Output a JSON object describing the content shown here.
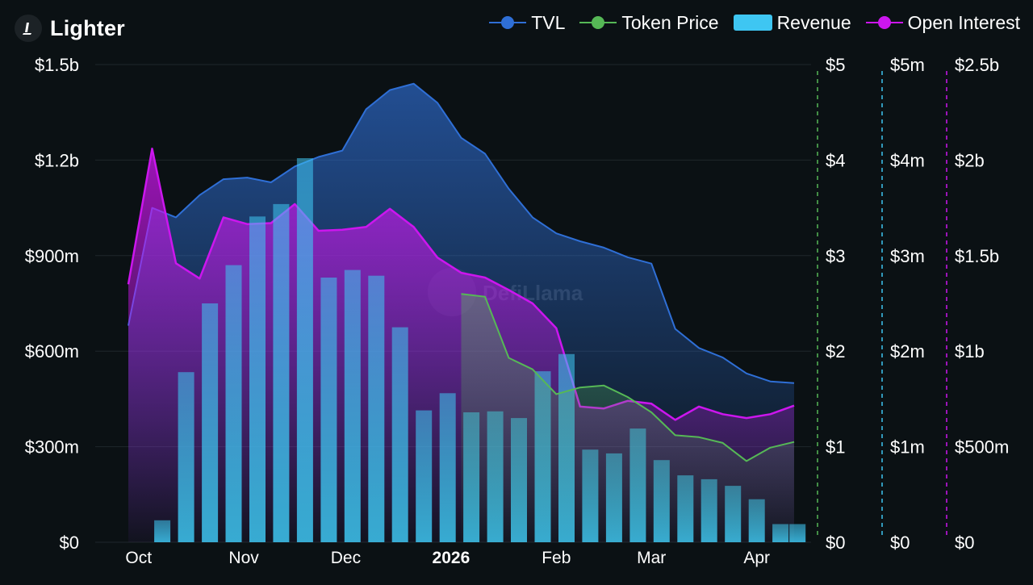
{
  "brand": {
    "name": "Lighter"
  },
  "legend": [
    {
      "label": "TVL",
      "color": "#2f6fd6",
      "marker": "line-dot"
    },
    {
      "label": "Token Price",
      "color": "#56b856",
      "marker": "line-dot"
    },
    {
      "label": "Revenue",
      "color": "#3ec6f2",
      "marker": "rect"
    },
    {
      "label": "Open Interest",
      "color": "#cc16ee",
      "marker": "line-dot"
    }
  ],
  "watermark": "DefiLlama",
  "chart_data": {
    "type": "bar",
    "x_tick_labels": [
      "Oct",
      "Nov",
      "Dec",
      "2026",
      "Feb",
      "Mar",
      "Apr"
    ],
    "x_tick_bold": "2026",
    "axes": {
      "tvl": {
        "min": 0,
        "max": 1500000000,
        "ticks": [
          0,
          300000000,
          600000000,
          900000000,
          1200000000,
          1500000000
        ],
        "tick_labels": [
          "$0",
          "$300m",
          "$600m",
          "$900m",
          "$1.2b",
          "$1.5b"
        ],
        "color": "#ffffff"
      },
      "token_price": {
        "min": 0,
        "max": 5,
        "ticks": [
          0,
          1,
          2,
          3,
          4,
          5
        ],
        "tick_labels": [
          "$0",
          "$1",
          "$2",
          "$3",
          "$4",
          "$5"
        ],
        "color": "#56b856"
      },
      "revenue": {
        "min": 0,
        "max": 5000000,
        "ticks": [
          0,
          1000000,
          2000000,
          3000000,
          4000000,
          5000000
        ],
        "tick_labels": [
          "$0",
          "$1m",
          "$2m",
          "$3m",
          "$4m",
          "$5m"
        ],
        "color": "#3ec6f2"
      },
      "open_interest": {
        "min": 0,
        "max": 2500000000,
        "ticks": [
          0,
          500000000,
          1000000000,
          1500000000,
          2000000000,
          2500000000
        ],
        "tick_labels": [
          "$0",
          "$500m",
          "$1b",
          "$1.5b",
          "$2b",
          "$2.5b"
        ],
        "color": "#cc16ee"
      }
    },
    "grid": true,
    "legend_position": "top-right",
    "series": [
      {
        "name": "TVL",
        "kind": "area",
        "color": "#2f6fd6",
        "points": [
          [
            "2025-09-28",
            680000000
          ],
          [
            "2025-10-05",
            1050000000
          ],
          [
            "2025-10-12",
            1020000000
          ],
          [
            "2025-10-19",
            1090000000
          ],
          [
            "2025-10-26",
            1140000000
          ],
          [
            "2025-11-02",
            1145000000
          ],
          [
            "2025-11-09",
            1130000000
          ],
          [
            "2025-11-16",
            1180000000
          ],
          [
            "2025-11-23",
            1210000000
          ],
          [
            "2025-11-30",
            1230000000
          ],
          [
            "2025-12-07",
            1360000000
          ],
          [
            "2025-12-14",
            1420000000
          ],
          [
            "2025-12-21",
            1440000000
          ],
          [
            "2025-12-28",
            1380000000
          ],
          [
            "2026-01-04",
            1270000000
          ],
          [
            "2026-01-11",
            1220000000
          ],
          [
            "2026-01-18",
            1110000000
          ],
          [
            "2026-01-25",
            1020000000
          ],
          [
            "2026-02-01",
            970000000
          ],
          [
            "2026-02-08",
            945000000
          ],
          [
            "2026-02-15",
            925000000
          ],
          [
            "2026-02-22",
            895000000
          ],
          [
            "2026-03-01",
            875000000
          ],
          [
            "2026-03-08",
            670000000
          ],
          [
            "2026-03-15",
            610000000
          ],
          [
            "2026-03-22",
            580000000
          ],
          [
            "2026-03-29",
            530000000
          ],
          [
            "2026-04-05",
            505000000
          ],
          [
            "2026-04-12",
            500000000
          ]
        ]
      },
      {
        "name": "Open Interest",
        "kind": "area",
        "color": "#cc16ee",
        "points": [
          [
            "2025-09-28",
            1350000000
          ],
          [
            "2025-10-05",
            2060000000
          ],
          [
            "2025-10-12",
            1460000000
          ],
          [
            "2025-10-19",
            1380000000
          ],
          [
            "2025-10-26",
            1700000000
          ],
          [
            "2025-11-02",
            1665000000
          ],
          [
            "2025-11-09",
            1670000000
          ],
          [
            "2025-11-16",
            1770000000
          ],
          [
            "2025-11-23",
            1630000000
          ],
          [
            "2025-11-30",
            1635000000
          ],
          [
            "2025-12-07",
            1650000000
          ],
          [
            "2025-12-14",
            1745000000
          ],
          [
            "2025-12-21",
            1650000000
          ],
          [
            "2025-12-28",
            1490000000
          ],
          [
            "2026-01-04",
            1410000000
          ],
          [
            "2026-01-11",
            1385000000
          ],
          [
            "2026-01-18",
            1320000000
          ],
          [
            "2026-01-25",
            1250000000
          ],
          [
            "2026-02-01",
            1120000000
          ],
          [
            "2026-02-08",
            710000000
          ],
          [
            "2026-02-15",
            700000000
          ],
          [
            "2026-02-22",
            740000000
          ],
          [
            "2026-03-01",
            725000000
          ],
          [
            "2026-03-08",
            640000000
          ],
          [
            "2026-03-15",
            710000000
          ],
          [
            "2026-03-22",
            670000000
          ],
          [
            "2026-03-29",
            650000000
          ],
          [
            "2026-04-05",
            670000000
          ],
          [
            "2026-04-12",
            715000000
          ]
        ]
      },
      {
        "name": "Token Price",
        "kind": "area",
        "color": "#56b856",
        "points": [
          [
            "2026-01-04",
            2.6
          ],
          [
            "2026-01-11",
            2.57
          ],
          [
            "2026-01-18",
            1.93
          ],
          [
            "2026-01-25",
            1.81
          ],
          [
            "2026-02-01",
            1.55
          ],
          [
            "2026-02-08",
            1.62
          ],
          [
            "2026-02-15",
            1.64
          ],
          [
            "2026-02-22",
            1.52
          ],
          [
            "2026-03-01",
            1.36
          ],
          [
            "2026-03-08",
            1.12
          ],
          [
            "2026-03-15",
            1.1
          ],
          [
            "2026-03-22",
            1.04
          ],
          [
            "2026-03-29",
            0.85
          ],
          [
            "2026-04-05",
            0.99
          ],
          [
            "2026-04-12",
            1.05
          ]
        ]
      },
      {
        "name": "Revenue",
        "kind": "bar",
        "color": "#3ec6f2",
        "points": [
          [
            "2025-10-08",
            230000
          ],
          [
            "2025-10-15",
            1780000
          ],
          [
            "2025-10-22",
            2500000
          ],
          [
            "2025-10-29",
            2900000
          ],
          [
            "2025-11-05",
            3410000
          ],
          [
            "2025-11-12",
            3540000
          ],
          [
            "2025-11-19",
            4020000
          ],
          [
            "2025-11-26",
            2770000
          ],
          [
            "2025-12-03",
            2850000
          ],
          [
            "2025-12-10",
            2790000
          ],
          [
            "2025-12-17",
            2250000
          ],
          [
            "2025-12-24",
            1380000
          ],
          [
            "2025-12-31",
            1560000
          ],
          [
            "2026-01-07",
            1360000
          ],
          [
            "2026-01-14",
            1370000
          ],
          [
            "2026-01-21",
            1300000
          ],
          [
            "2026-01-28",
            1790000
          ],
          [
            "2026-02-04",
            1970000
          ],
          [
            "2026-02-11",
            970000
          ],
          [
            "2026-02-18",
            930000
          ],
          [
            "2026-02-25",
            1190000
          ],
          [
            "2026-03-04",
            860000
          ],
          [
            "2026-03-11",
            700000
          ],
          [
            "2026-03-18",
            660000
          ],
          [
            "2026-03-25",
            590000
          ],
          [
            "2026-04-01",
            450000
          ],
          [
            "2026-04-08",
            190000
          ],
          [
            "2026-04-13",
            190000
          ]
        ]
      }
    ]
  }
}
